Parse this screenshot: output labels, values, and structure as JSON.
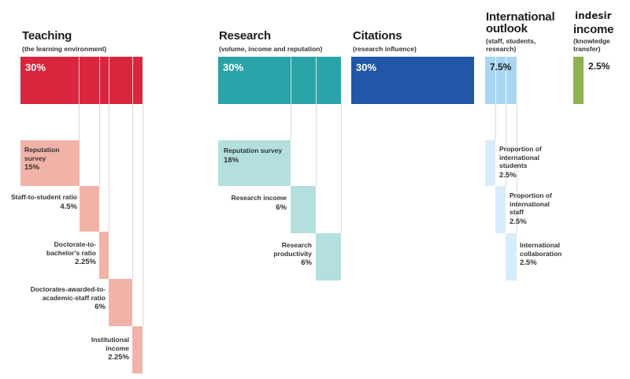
{
  "watermark": "indesir",
  "teaching": {
    "title": "Teaching",
    "subtitle": "(the learning environment)",
    "total": "30%",
    "items": [
      {
        "label": "Reputation survey",
        "value": "15%"
      },
      {
        "label": "Staff-to-student ratio",
        "value": "4.5%"
      },
      {
        "label": "Doctorate-to-bachelor's ratio",
        "value": "2.25%"
      },
      {
        "label": "Doctorates-awarded-to-academic-staff ratio",
        "value": "6%"
      },
      {
        "label": "Institutional income",
        "value": "2.25%"
      }
    ]
  },
  "research": {
    "title": "Research",
    "subtitle": "(volume, income and reputation)",
    "total": "30%",
    "items": [
      {
        "label": "Reputation survey",
        "value": "18%"
      },
      {
        "label": "Research income",
        "value": "6%"
      },
      {
        "label": "Research productivity",
        "value": "6%"
      }
    ]
  },
  "citations": {
    "title": "Citations",
    "subtitle": "(research influence)",
    "total": "30%"
  },
  "international": {
    "title": "International outlook",
    "subtitle": "(staff, students, research)",
    "total": "7.5%",
    "items": [
      {
        "label": "Proportion of international students",
        "value": "2.5%"
      },
      {
        "label": "Proportion of international staff",
        "value": "2.5%"
      },
      {
        "label": "International collaboration",
        "value": "2.5%"
      }
    ]
  },
  "industry": {
    "title": "income",
    "subtitle": "(knowledge transfer)",
    "total": "2.5%"
  },
  "colors": {
    "teaching": "#d9263f",
    "teaching_light": "#f1b3a8",
    "research": "#2aa3a8",
    "research_light": "#b3e0df",
    "citations": "#2157a6",
    "international": "#a9d6f2",
    "international_light": "#d8ecf9",
    "industry": "#8fb150"
  }
}
